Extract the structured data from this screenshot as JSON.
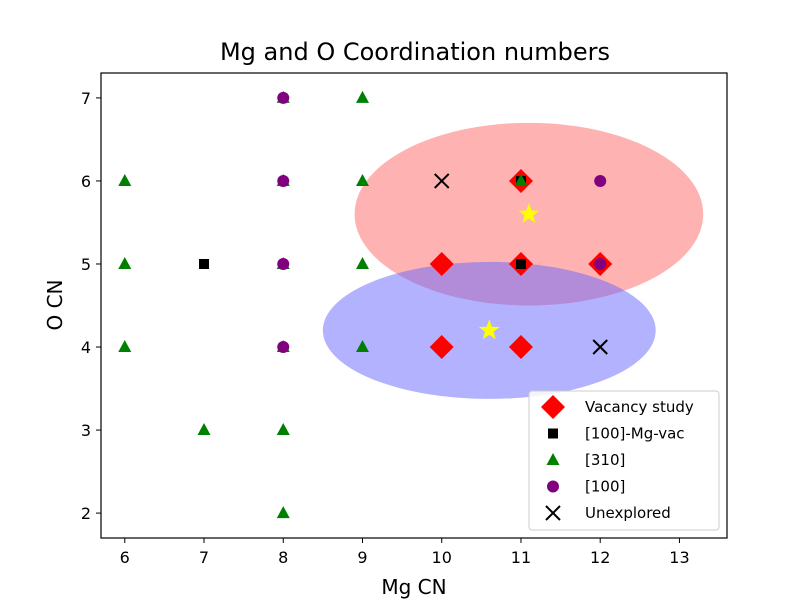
{
  "chart_data": {
    "type": "scatter",
    "title": "Mg and O Coordination numbers",
    "xlabel": "Mg CN",
    "ylabel": "O CN",
    "xlim": [
      5.7,
      13.6
    ],
    "ylim": [
      1.7,
      7.3
    ],
    "xticks": [
      6,
      7,
      8,
      9,
      10,
      11,
      12,
      13
    ],
    "yticks": [
      2,
      3,
      4,
      5,
      6,
      7
    ],
    "grid": false,
    "legend_position": "lower-right",
    "regions": [
      {
        "shape": "ellipse",
        "center": [
          11.1,
          5.6
        ],
        "width": 4.4,
        "height": 2.2,
        "color": "#ff6666",
        "opacity": 0.5
      },
      {
        "shape": "ellipse",
        "center": [
          10.6,
          4.2
        ],
        "width": 4.2,
        "height": 1.65,
        "color": "#6666ff",
        "opacity": 0.5
      }
    ],
    "centers": [
      {
        "marker": "star",
        "color": "#ffff00",
        "x": 11.1,
        "y": 5.6
      },
      {
        "marker": "star",
        "color": "#ffff00",
        "x": 10.6,
        "y": 4.2
      }
    ],
    "series": [
      {
        "name": "Vacancy study",
        "marker": "diamond",
        "color": "#ff0000",
        "x": [
          10,
          11,
          12,
          11,
          10,
          11
        ],
        "y": [
          5,
          5,
          5,
          6,
          4,
          4
        ]
      },
      {
        "name": "[100]-Mg-vac",
        "marker": "square",
        "color": "#000000",
        "x": [
          7,
          11,
          11
        ],
        "y": [
          5,
          5,
          6
        ]
      },
      {
        "name": "[310]",
        "marker": "triangle",
        "color": "#008000",
        "x": [
          6,
          6,
          6,
          7,
          8,
          8,
          8,
          8,
          8,
          8,
          9,
          9,
          9,
          9,
          11
        ],
        "y": [
          6,
          5,
          4,
          3,
          3,
          2,
          7,
          6,
          5,
          4,
          7,
          6,
          5,
          4,
          6
        ]
      },
      {
        "name": "[100]",
        "marker": "circle",
        "color": "#800080",
        "x": [
          8,
          8,
          8,
          8,
          12,
          12
        ],
        "y": [
          7,
          6,
          5,
          4,
          6,
          5
        ]
      },
      {
        "name": "Unexplored",
        "marker": "x",
        "color": "#000000",
        "x": [
          10,
          12
        ],
        "y": [
          6,
          4
        ]
      }
    ]
  }
}
